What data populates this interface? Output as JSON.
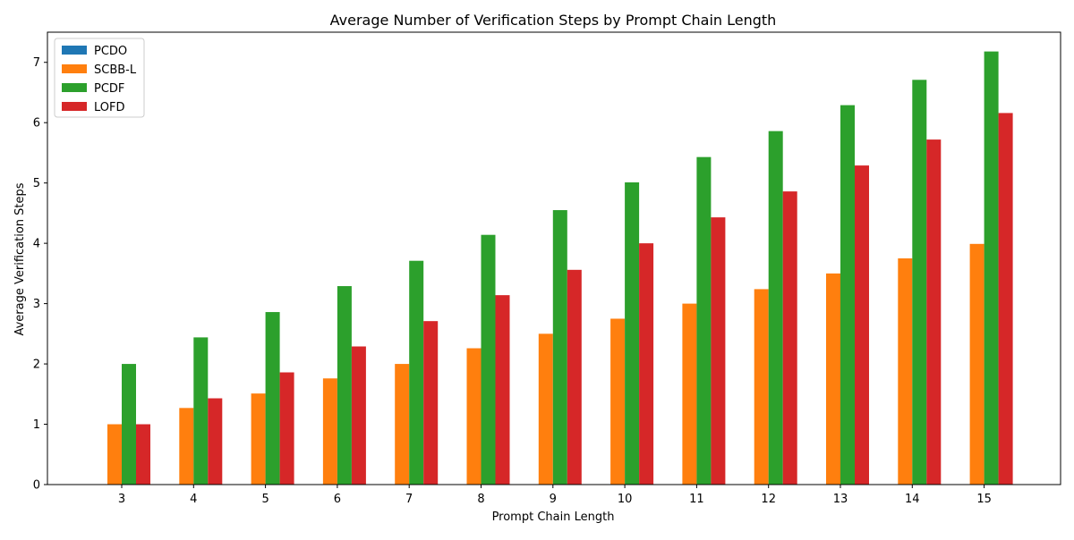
{
  "chart_data": {
    "type": "bar",
    "title": "Average Number of Verification Steps by Prompt Chain Length",
    "xlabel": "Prompt Chain Length",
    "ylabel": "Average Verification Steps",
    "categories": [
      "3",
      "4",
      "5",
      "6",
      "7",
      "8",
      "9",
      "10",
      "11",
      "12",
      "13",
      "14",
      "15"
    ],
    "ylim": [
      0,
      7.5
    ],
    "yticks": [
      0,
      1,
      2,
      3,
      4,
      5,
      6,
      7
    ],
    "grid": false,
    "legend_position": "top-left",
    "series": [
      {
        "name": "PCDO",
        "color": "#1f77b4",
        "values": [
          0,
          0,
          0,
          0,
          0,
          0,
          0,
          0,
          0,
          0,
          0,
          0,
          0
        ]
      },
      {
        "name": "SCBB-L",
        "color": "#ff7f0e",
        "values": [
          1.0,
          1.27,
          1.51,
          1.76,
          2.0,
          2.26,
          2.5,
          2.75,
          3.0,
          3.24,
          3.5,
          3.75,
          3.99
        ]
      },
      {
        "name": "PCDF",
        "color": "#2ca02c",
        "values": [
          2.0,
          2.44,
          2.86,
          3.29,
          3.71,
          4.14,
          4.55,
          5.01,
          5.43,
          5.86,
          6.29,
          6.71,
          7.18
        ]
      },
      {
        "name": "LOFD",
        "color": "#d62728",
        "values": [
          1.0,
          1.43,
          1.86,
          2.29,
          2.71,
          3.14,
          3.56,
          4.0,
          4.43,
          4.86,
          5.29,
          5.72,
          6.16
        ]
      }
    ]
  }
}
